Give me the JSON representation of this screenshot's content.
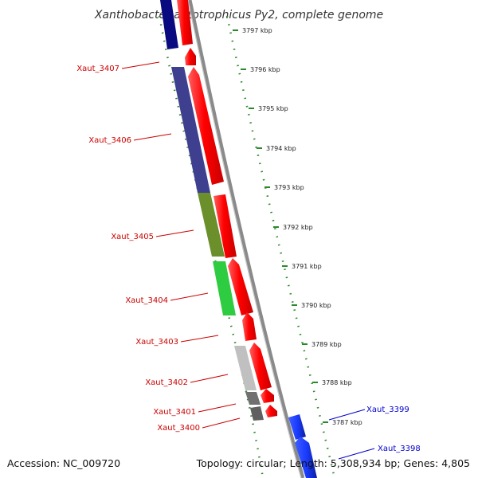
{
  "title": "Xanthobacter autotrophicus Py2, complete genome",
  "footer": {
    "accession": "Accession: NC_009720",
    "info": "Topology: circular; Length: 5,308,934 bp; Genes: 4,805"
  },
  "ticks": [
    "3797 kbp",
    "3796 kbp",
    "3795 kbp",
    "3794 kbp",
    "3793 kbp",
    "3792 kbp",
    "3791 kbp",
    "3790 kbp",
    "3789 kbp",
    "3788 kbp",
    "3787 kbp"
  ],
  "reverse_genes": [
    {
      "label": "Xaut_3407",
      "color": "#3f3f8f"
    },
    {
      "label": "Xaut_3406",
      "color": "#4a4fa0"
    },
    {
      "label": "Xaut_3405",
      "color": "#6b8f2a"
    },
    {
      "label": "Xaut_3404",
      "color": "#2ecc40"
    },
    {
      "label": "Xaut_3403",
      "color": "#ffffff"
    },
    {
      "label": "Xaut_3402",
      "color": "#c0c0c0"
    },
    {
      "label": "Xaut_3401",
      "color": "#707070"
    },
    {
      "label": "Xaut_3400",
      "color": "#606060"
    }
  ],
  "forward_genes": [
    {
      "label": "Xaut_3399",
      "color": "#1a3cff"
    },
    {
      "label": "Xaut_3398",
      "color": "#1a3cff"
    }
  ],
  "colors": {
    "cds_forward": "#ff0000",
    "cds_reverse_labels": "#cc0000",
    "forward_labels": "#0000cc",
    "backbone": "#888888",
    "tick_marks": "#2a8a2a"
  }
}
